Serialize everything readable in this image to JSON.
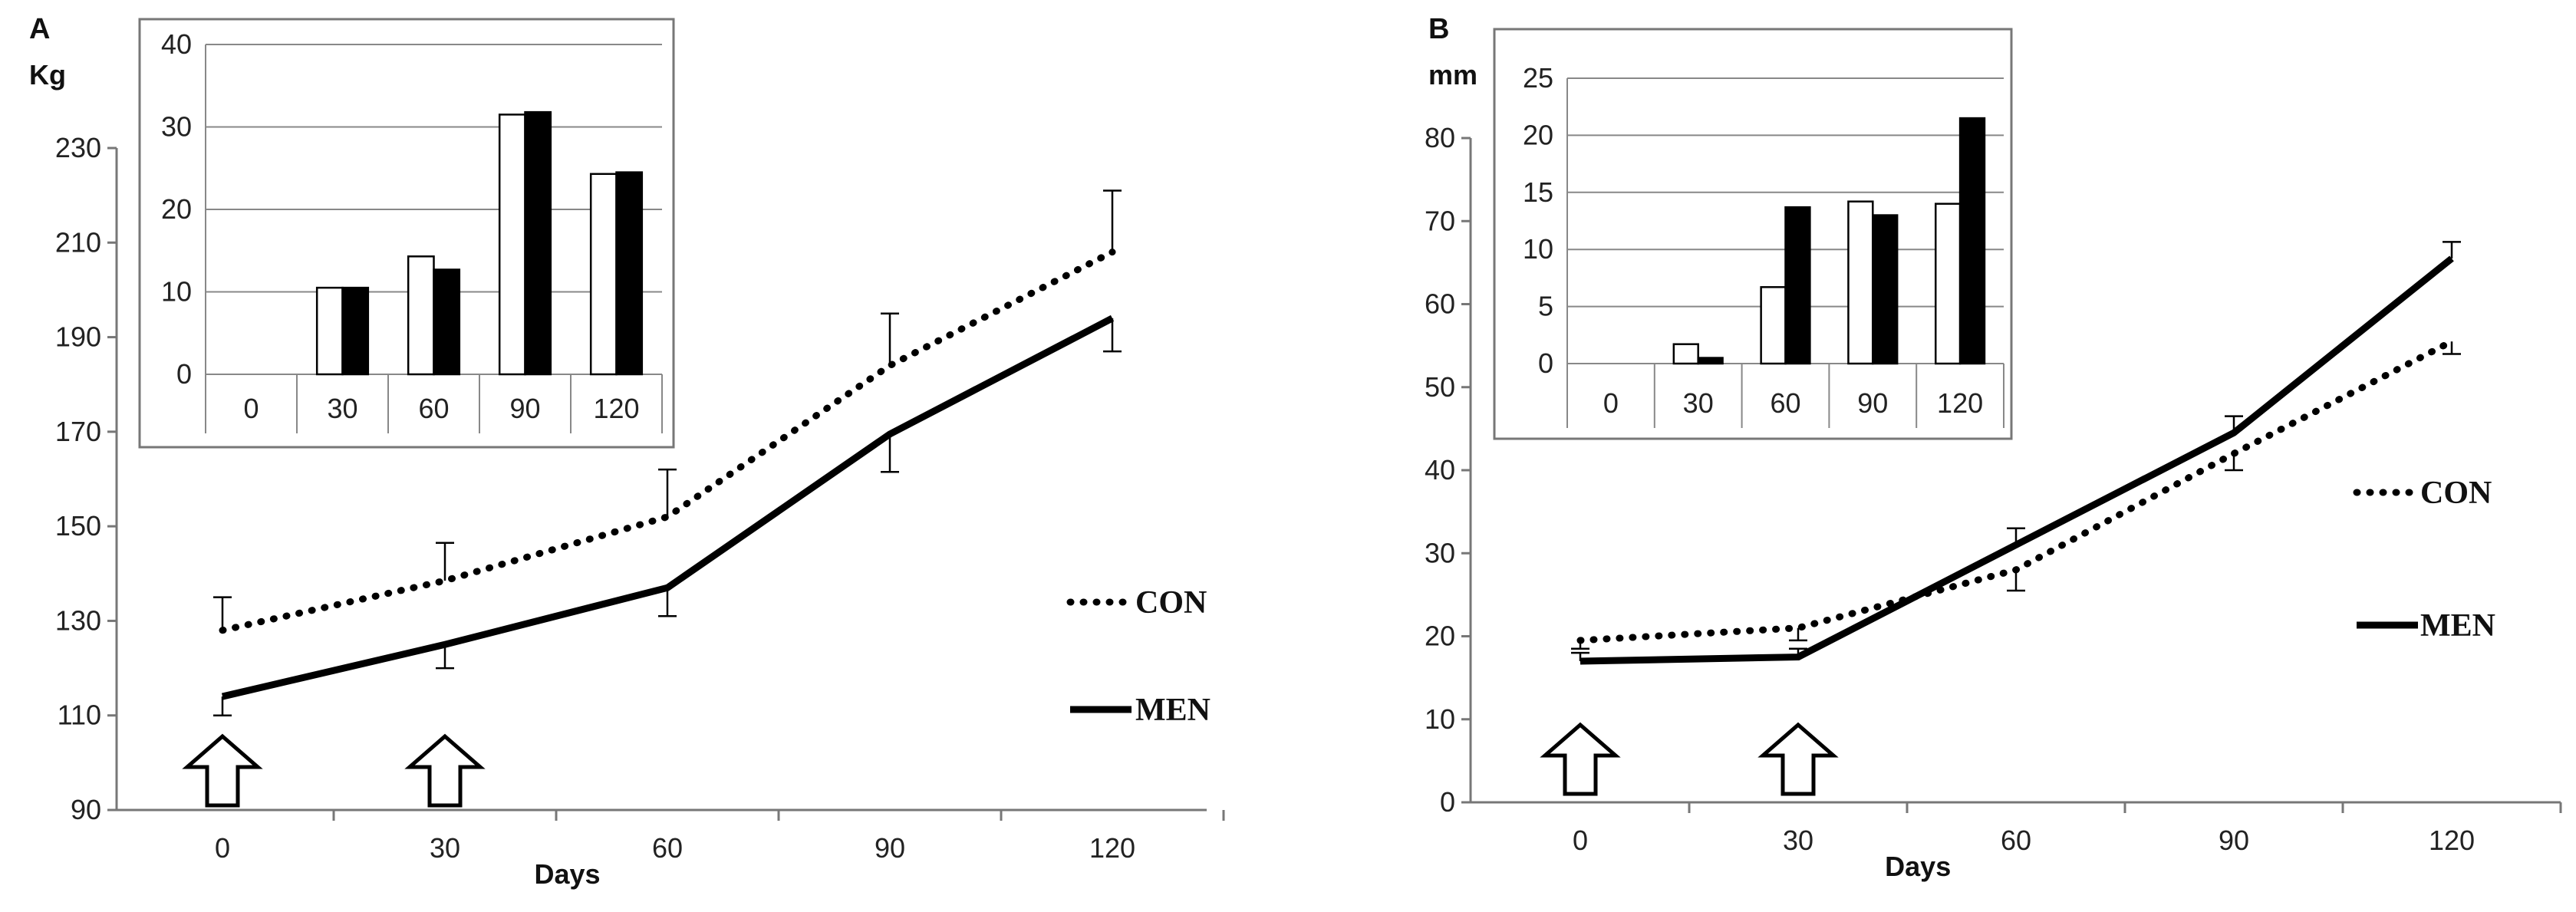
{
  "chart_data": [
    {
      "panel": "A",
      "type": "line",
      "unit_label": "Kg",
      "xlabel": "Days",
      "categories": [
        "0",
        "30",
        "60",
        "90",
        "120"
      ],
      "ylim": [
        90,
        230
      ],
      "yticks": [
        90,
        110,
        130,
        150,
        170,
        190,
        210,
        230
      ],
      "series": [
        {
          "name": "CON",
          "style": "dotted",
          "values": [
            128,
            138.5,
            152,
            184,
            208
          ],
          "error": [
            7,
            8,
            10,
            11,
            13
          ]
        },
        {
          "name": "MEN",
          "style": "solid",
          "values": [
            114,
            125,
            137,
            169.5,
            194
          ],
          "error": [
            4,
            5,
            6,
            8,
            7
          ]
        }
      ],
      "error_direction": [
        "up",
        "down"
      ],
      "arrows_at": [
        0,
        30
      ],
      "legend_position": "right",
      "inset": {
        "type": "bar",
        "categories": [
          "0",
          "30",
          "60",
          "90",
          "120"
        ],
        "ylim": [
          0,
          40
        ],
        "yticks": [
          0,
          10,
          20,
          30,
          40
        ],
        "series": [
          {
            "name": "CON",
            "fill": "#ffffff",
            "values": [
              0,
              10.5,
              14.3,
              31.5,
              24.3
            ]
          },
          {
            "name": "MEN",
            "fill": "#000000",
            "values": [
              0,
              10.5,
              12.7,
              31.8,
              24.5
            ]
          }
        ]
      }
    },
    {
      "panel": "B",
      "type": "line",
      "unit_label": "mm",
      "xlabel": "Days",
      "categories": [
        "0",
        "30",
        "60",
        "90",
        "120"
      ],
      "ylim": [
        0,
        80
      ],
      "yticks": [
        0,
        10,
        20,
        30,
        40,
        50,
        60,
        70,
        80
      ],
      "series": [
        {
          "name": "CON",
          "style": "dotted",
          "values": [
            19.5,
            21,
            28,
            42,
            55.5
          ],
          "error": [
            1,
            1.5,
            2.5,
            2,
            1.5
          ]
        },
        {
          "name": "MEN",
          "style": "solid",
          "values": [
            17,
            17.5,
            31,
            44.5,
            65.5
          ],
          "error": [
            1,
            1,
            2,
            2,
            2
          ]
        }
      ],
      "error_direction": [
        "down",
        "up"
      ],
      "arrows_at": [
        0,
        30
      ],
      "legend_position": "right",
      "inset": {
        "type": "bar",
        "categories": [
          "0",
          "30",
          "60",
          "90",
          "120"
        ],
        "ylim": [
          0,
          25
        ],
        "yticks": [
          0,
          5,
          10,
          15,
          20,
          25
        ],
        "series": [
          {
            "name": "CON",
            "fill": "#ffffff",
            "values": [
              0,
              1.7,
              6.7,
              14.2,
              14.0
            ]
          },
          {
            "name": "MEN",
            "fill": "#000000",
            "values": [
              0,
              0.5,
              13.7,
              13.0,
              21.5
            ]
          }
        ]
      }
    }
  ]
}
